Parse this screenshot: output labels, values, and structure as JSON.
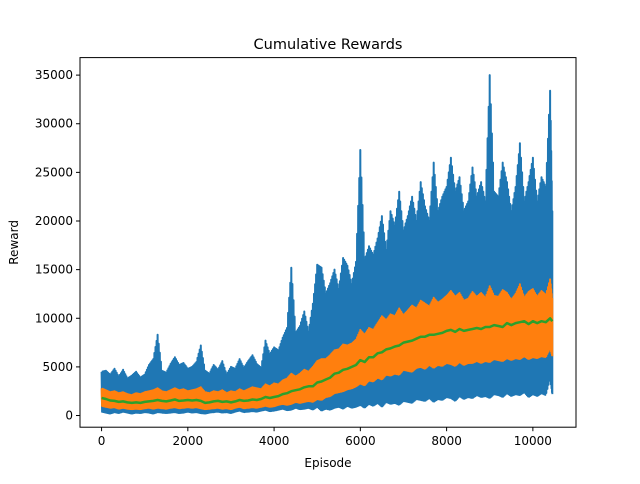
{
  "chart_data": {
    "type": "line",
    "title": "Cumulative Rewards",
    "xlabel": "Episode",
    "ylabel": "Reward",
    "xlim": [
      -500,
      11000
    ],
    "ylim": [
      -1200,
      36800
    ],
    "xticks": [
      0,
      2000,
      4000,
      6000,
      8000,
      10000
    ],
    "yticks": [
      0,
      5000,
      10000,
      15000,
      20000,
      25000,
      30000,
      35000
    ],
    "grid": false,
    "legend": "none",
    "series": [
      {
        "color": "#1f77b4",
        "stroke_width": 2,
        "x": [
          0,
          100,
          200,
          300,
          400,
          500,
          600,
          700,
          800,
          900,
          1000,
          1100,
          1200,
          1300,
          1400,
          1500,
          1600,
          1700,
          1800,
          1900,
          2000,
          2100,
          2200,
          2300,
          2400,
          2500,
          2600,
          2700,
          2800,
          2900,
          3000,
          3100,
          3200,
          3300,
          3400,
          3500,
          3600,
          3700,
          3800,
          3900,
          4000,
          4100,
          4200,
          4300,
          4400,
          4500,
          4600,
          4700,
          4800,
          4900,
          5000,
          5100,
          5200,
          5300,
          5400,
          5500,
          5600,
          5700,
          5800,
          5900,
          6000,
          6100,
          6200,
          6300,
          6400,
          6500,
          6600,
          6700,
          6800,
          6900,
          7000,
          7100,
          7200,
          7300,
          7400,
          7500,
          7600,
          7700,
          7800,
          7900,
          8000,
          8100,
          8200,
          8300,
          8400,
          8500,
          8600,
          8700,
          8800,
          8900,
          9000,
          9100,
          9200,
          9300,
          9400,
          9500,
          9600,
          9700,
          9800,
          9900,
          10000,
          10100,
          10200,
          10300,
          10400,
          10450
        ],
        "upper": [
          4500,
          4600,
          4200,
          4800,
          4000,
          4700,
          3800,
          4100,
          4500,
          3900,
          4200,
          5200,
          5800,
          8300,
          4600,
          4400,
          5300,
          6000,
          5200,
          5400,
          4800,
          5000,
          5500,
          7200,
          4600,
          4300,
          5200,
          4700,
          5600,
          4200,
          5000,
          4800,
          5800,
          4900,
          5600,
          6200,
          5300,
          4900,
          7700,
          6300,
          7000,
          6700,
          8000,
          9000,
          15200,
          8500,
          9200,
          10700,
          8600,
          11500,
          15500,
          15200,
          12500,
          13600,
          15000,
          13000,
          16200,
          15400,
          13500,
          15800,
          27300,
          16000,
          17400,
          16500,
          18200,
          20500,
          17000,
          21000,
          19500,
          23000,
          19000,
          20500,
          22500,
          20000,
          24000,
          21500,
          20000,
          26000,
          21000,
          22500,
          23500,
          26500,
          23000,
          24500,
          21000,
          22000,
          25500,
          22500,
          24000,
          22000,
          35000,
          23000,
          22500,
          26000,
          24000,
          21000,
          23500,
          28000,
          22000,
          24000,
          26500,
          22000,
          24500,
          23500,
          33400,
          21000
        ],
        "lower": [
          400,
          300,
          200,
          350,
          250,
          400,
          300,
          200,
          300,
          250,
          350,
          300,
          200,
          350,
          300,
          250,
          300,
          350,
          250,
          300,
          400,
          300,
          350,
          250,
          200,
          300,
          350,
          400,
          300,
          350,
          250,
          400,
          500,
          350,
          400,
          450,
          400,
          500,
          600,
          450,
          500,
          600,
          700,
          550,
          600,
          800,
          650,
          700,
          800,
          600,
          900,
          500,
          700,
          600,
          800,
          900,
          700,
          1000,
          800,
          900,
          1100,
          800,
          1200,
          1000,
          1300,
          900,
          1400,
          1200,
          1300,
          1100,
          1500,
          1400,
          1300,
          1700,
          1600,
          1500,
          1800,
          1400,
          1700,
          1600,
          1900,
          1800,
          1500,
          2000,
          1700,
          1900,
          1800,
          2100,
          1900,
          2000,
          1800,
          2200,
          2100,
          1900,
          2300,
          2000,
          2200,
          2100,
          2400,
          1900,
          2200,
          2000,
          2300,
          2100,
          3800,
          2200
        ]
      },
      {
        "color": "#ff7f0e",
        "stroke_width": 2,
        "x": [
          0,
          100,
          200,
          300,
          400,
          500,
          600,
          700,
          800,
          900,
          1000,
          1100,
          1200,
          1300,
          1400,
          1500,
          1600,
          1700,
          1800,
          1900,
          2000,
          2100,
          2200,
          2300,
          2400,
          2500,
          2600,
          2700,
          2800,
          2900,
          3000,
          3100,
          3200,
          3300,
          3400,
          3500,
          3600,
          3700,
          3800,
          3900,
          4000,
          4100,
          4200,
          4300,
          4400,
          4500,
          4600,
          4700,
          4800,
          4900,
          5000,
          5100,
          5200,
          5300,
          5400,
          5500,
          5600,
          5700,
          5800,
          5900,
          6000,
          6100,
          6200,
          6300,
          6400,
          6500,
          6600,
          6700,
          6800,
          6900,
          7000,
          7100,
          7200,
          7300,
          7400,
          7500,
          7600,
          7700,
          7800,
          7900,
          8000,
          8100,
          8200,
          8300,
          8400,
          8500,
          8600,
          8700,
          8800,
          8900,
          9000,
          9100,
          9200,
          9300,
          9400,
          9500,
          9600,
          9700,
          9800,
          9900,
          10000,
          10100,
          10200,
          10300,
          10400,
          10450
        ],
        "upper": [
          2800,
          2600,
          2400,
          2500,
          2300,
          2400,
          2200,
          2100,
          2300,
          2200,
          2400,
          2500,
          2600,
          2800,
          2500,
          2400,
          2600,
          2800,
          2600,
          2700,
          2500,
          2600,
          2700,
          2900,
          2400,
          2300,
          2500,
          2400,
          2600,
          2300,
          2500,
          2400,
          2700,
          2500,
          2700,
          2900,
          2800,
          2700,
          3200,
          3000,
          3300,
          3200,
          3600,
          3800,
          4300,
          4000,
          4300,
          4700,
          4500,
          5000,
          5600,
          5800,
          5800,
          6200,
          6700,
          6800,
          7300,
          7200,
          7400,
          7800,
          8800,
          8300,
          9000,
          8800,
          9500,
          10200,
          9800,
          10400,
          10200,
          11000,
          10300,
          10800,
          11300,
          11000,
          11800,
          11500,
          11200,
          12100,
          11600,
          11900,
          12300,
          12800,
          12200,
          12600,
          11800,
          12000,
          12700,
          12200,
          12600,
          12100,
          13300,
          12300,
          12200,
          12900,
          12600,
          11900,
          12500,
          13500,
          12100,
          12700,
          13000,
          12200,
          12800,
          12400,
          14000,
          12000
        ],
        "lower": [
          1000,
          900,
          800,
          850,
          700,
          800,
          700,
          650,
          700,
          650,
          750,
          800,
          700,
          800,
          750,
          700,
          800,
          850,
          750,
          800,
          850,
          800,
          850,
          750,
          650,
          700,
          750,
          800,
          700,
          750,
          650,
          800,
          900,
          750,
          800,
          850,
          800,
          900,
          1000,
          900,
          950,
          1100,
          1200,
          1100,
          1200,
          1400,
          1300,
          1400,
          1500,
          1400,
          1700,
          1600,
          1900,
          2000,
          2300,
          2400,
          2500,
          2700,
          2800,
          3000,
          3300,
          3100,
          3600,
          3500,
          3900,
          3700,
          4200,
          4100,
          4300,
          4200,
          4700,
          4600,
          4500,
          4900,
          5000,
          4800,
          5200,
          4900,
          5200,
          5100,
          5400,
          5300,
          5100,
          5500,
          5200,
          5400,
          5400,
          5600,
          5400,
          5600,
          5500,
          5800,
          5700,
          5600,
          5900,
          5700,
          5900,
          5800,
          6100,
          5800,
          6000,
          5900,
          6100,
          6000,
          6900,
          6100
        ]
      },
      {
        "color": "#2ca02c",
        "stroke_width": 2.5,
        "x": [
          0,
          100,
          200,
          300,
          400,
          500,
          600,
          700,
          800,
          900,
          1000,
          1100,
          1200,
          1300,
          1400,
          1500,
          1600,
          1700,
          1800,
          1900,
          2000,
          2100,
          2200,
          2300,
          2400,
          2500,
          2600,
          2700,
          2800,
          2900,
          3000,
          3100,
          3200,
          3300,
          3400,
          3500,
          3600,
          3700,
          3800,
          3900,
          4000,
          4100,
          4200,
          4300,
          4400,
          4500,
          4600,
          4700,
          4800,
          4900,
          5000,
          5100,
          5200,
          5300,
          5400,
          5500,
          5600,
          5700,
          5800,
          5900,
          6000,
          6100,
          6200,
          6300,
          6400,
          6500,
          6600,
          6700,
          6800,
          6900,
          7000,
          7100,
          7200,
          7300,
          7400,
          7500,
          7600,
          7700,
          7800,
          7900,
          8000,
          8100,
          8200,
          8300,
          8400,
          8500,
          8600,
          8700,
          8800,
          8900,
          9000,
          9100,
          9200,
          9300,
          9400,
          9500,
          9600,
          9700,
          9800,
          9900,
          10000,
          10100,
          10200,
          10300,
          10400,
          10450
        ],
        "y": [
          1800,
          1700,
          1550,
          1500,
          1400,
          1450,
          1350,
          1300,
          1350,
          1300,
          1400,
          1450,
          1500,
          1600,
          1500,
          1450,
          1550,
          1650,
          1500,
          1550,
          1600,
          1550,
          1600,
          1500,
          1300,
          1350,
          1450,
          1500,
          1400,
          1450,
          1350,
          1450,
          1600,
          1500,
          1550,
          1650,
          1600,
          1700,
          1900,
          1800,
          1900,
          2000,
          2200,
          2300,
          2500,
          2600,
          2700,
          2900,
          3000,
          3000,
          3400,
          3500,
          3700,
          3900,
          4300,
          4400,
          4700,
          4800,
          5000,
          5200,
          5700,
          5500,
          6000,
          6000,
          6400,
          6500,
          6800,
          6900,
          7100,
          7200,
          7500,
          7600,
          7700,
          7900,
          8100,
          8100,
          8300,
          8300,
          8400,
          8500,
          8700,
          8800,
          8600,
          8900,
          8700,
          8800,
          8900,
          9000,
          8900,
          9100,
          9100,
          9300,
          9200,
          9100,
          9500,
          9300,
          9500,
          9600,
          9700,
          9400,
          9700,
          9500,
          9700,
          9600,
          10000,
          9700
        ]
      }
    ]
  }
}
